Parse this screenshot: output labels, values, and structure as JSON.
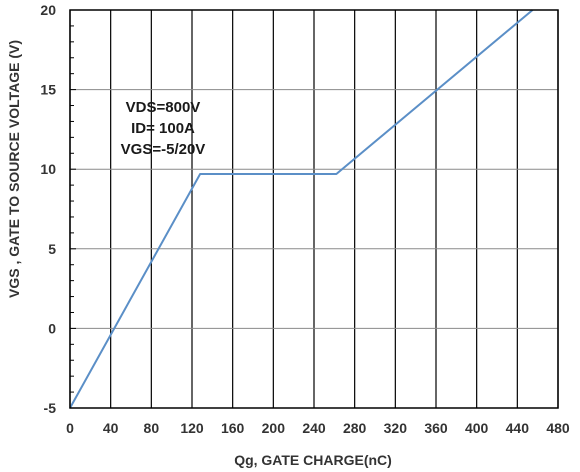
{
  "chart_data": {
    "type": "line",
    "title": "",
    "xlabel": "Qg, GATE CHARGE(nC)",
    "ylabel": "VGS , GATE TO SOURCE VOLTAGE (V)",
    "xlim": [
      0,
      480
    ],
    "ylim": [
      -5,
      20
    ],
    "x_ticks": [
      "0",
      "40",
      "80",
      "120",
      "160",
      "200",
      "240",
      "280",
      "320",
      "360",
      "400",
      "440",
      "480"
    ],
    "y_ticks": [
      "-5",
      "0",
      "5",
      "10",
      "15",
      "20"
    ],
    "grid": true,
    "annotations": [
      "VDS=800V",
      "ID= 100A",
      "VGS=-5/20V"
    ],
    "series": [
      {
        "name": "",
        "color": "#5b8fc7",
        "x": [
          0,
          128,
          262,
          455
        ],
        "y": [
          -5,
          9.7,
          9.7,
          20
        ]
      }
    ]
  }
}
